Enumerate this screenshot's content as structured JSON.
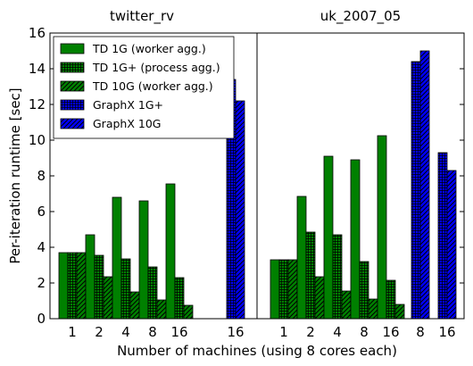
{
  "chart_data": {
    "type": "bar",
    "ylabel": "Per-iteration runtime [sec]",
    "xlabel": "Number of machines (using 8 cores each)",
    "ylim": [
      0,
      16
    ],
    "yticks": [
      0,
      2,
      4,
      6,
      8,
      10,
      12,
      14,
      16
    ],
    "grid": false,
    "legend_position": "top-left",
    "series": [
      {
        "name": "TD 1G (worker agg.)",
        "color": "#008000",
        "pattern": "solid"
      },
      {
        "name": "TD 1G+ (process agg.)",
        "color": "#008000",
        "pattern": "crosshatch"
      },
      {
        "name": "TD 10G (worker agg.)",
        "color": "#008000",
        "pattern": "diagonal"
      },
      {
        "name": "GraphX 1G+",
        "color": "#0000ff",
        "pattern": "crosshatch"
      },
      {
        "name": "GraphX 10G",
        "color": "#0000ff",
        "pattern": "diagonal"
      }
    ],
    "panels": [
      {
        "title": "twitter_rv",
        "td_groups": [
          {
            "label": "1",
            "values": [
              3.7,
              3.7,
              3.7
            ]
          },
          {
            "label": "2",
            "values": [
              4.7,
              3.55,
              2.35
            ]
          },
          {
            "label": "4",
            "values": [
              6.8,
              3.35,
              1.5
            ]
          },
          {
            "label": "8",
            "values": [
              6.6,
              2.9,
              1.05
            ]
          },
          {
            "label": "16",
            "values": [
              7.55,
              2.3,
              0.75
            ]
          }
        ],
        "graphx_groups": [
          {
            "label": "",
            "values": [
              0,
              0
            ]
          },
          {
            "label": "16",
            "values": [
              13.4,
              12.2
            ]
          }
        ]
      },
      {
        "title": "uk_2007_05",
        "td_groups": [
          {
            "label": "1",
            "values": [
              3.3,
              3.3,
              3.3
            ]
          },
          {
            "label": "2",
            "values": [
              6.85,
              4.85,
              2.35
            ]
          },
          {
            "label": "4",
            "values": [
              9.1,
              4.7,
              1.55
            ]
          },
          {
            "label": "8",
            "values": [
              8.9,
              3.2,
              1.1
            ]
          },
          {
            "label": "16",
            "values": [
              10.25,
              2.15,
              0.8
            ]
          }
        ],
        "graphx_groups": [
          {
            "label": "8",
            "values": [
              14.4,
              15.0
            ]
          },
          {
            "label": "16",
            "values": [
              9.3,
              8.3
            ]
          }
        ]
      }
    ]
  }
}
